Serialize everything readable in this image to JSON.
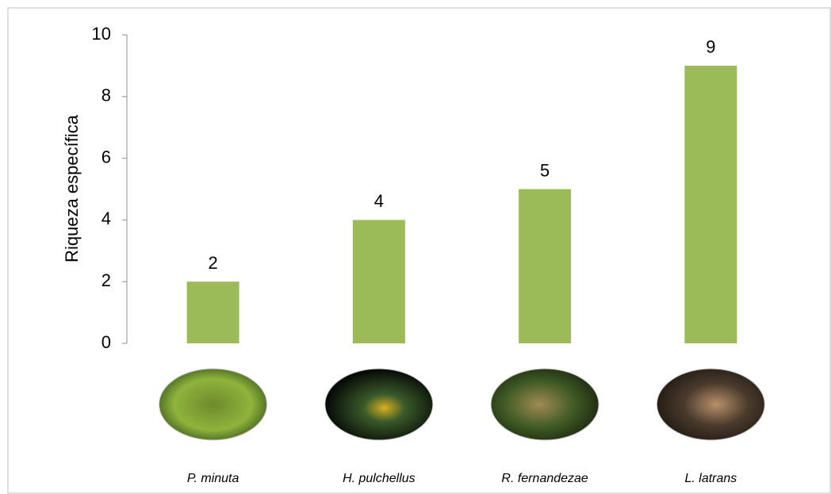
{
  "chart_data": {
    "type": "bar",
    "y_label": "Riqueza específica",
    "categories": [
      "P. minuta",
      "H. pulchellus",
      "R. fernandezae",
      "L. latrans"
    ],
    "values": [
      2,
      4,
      5,
      9
    ],
    "color": "#9bbb59",
    "ylim": [
      0,
      10
    ],
    "yticks": [
      0,
      2,
      4,
      6,
      8,
      10
    ],
    "grid": false,
    "data_labels": true
  }
}
